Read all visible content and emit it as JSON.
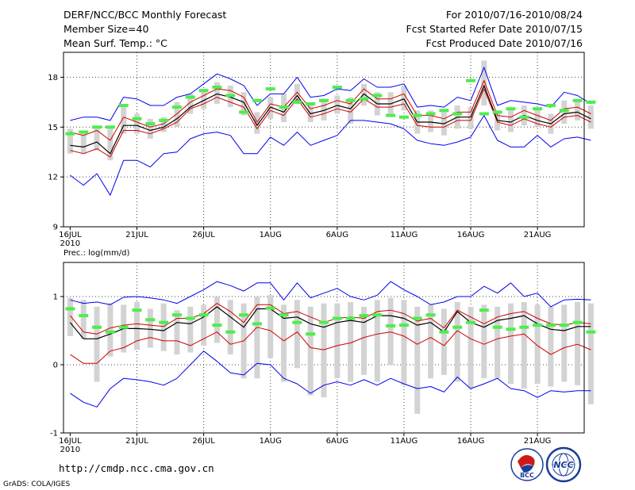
{
  "header": {
    "title": "DERF/NCC/BCC Monthly Forecast",
    "member_size": "Member Size=40",
    "variable": "Mean Surf. Temp.: °C",
    "period": "For 2010/07/16-2010/08/24",
    "start_date": "Fcst Started Refer Date 2010/07/15",
    "produced_date": "Fcst Produced Date 2010/07/16"
  },
  "footer": {
    "url": "http://cmdp.ncc.cma.gov.cn",
    "grads": "GrADS: COLA/IGES",
    "logo_bcc": "BCC",
    "logo_ncc": "NCC"
  },
  "colors": {
    "box": "#d3d3d3",
    "obs": "#4ded4d",
    "mean": "#000000",
    "inner": "#d00000",
    "outer": "#0000ee",
    "grid": "#444444"
  },
  "chart_data": [
    {
      "type": "line",
      "name": "temperature",
      "title": "",
      "ylabel": "°C",
      "ylim": [
        9,
        19.5
      ],
      "yticks": [
        9,
        12,
        15,
        18
      ],
      "ytick_labels": [
        "9",
        "12",
        "15",
        "18"
      ],
      "xlim": [
        0.5,
        39.5
      ],
      "xticks": [
        1,
        6,
        11,
        16,
        21,
        26,
        31,
        36
      ],
      "xtick_labels": [
        "16JUL",
        "21JUL",
        "26JUL",
        "1AUG",
        "6AUG",
        "11AUG",
        "16AUG",
        "21AUG"
      ],
      "xlabel": "2010",
      "series": [
        {
          "name": "ensemble max",
          "role": "outer",
          "values": [
            15.4,
            15.6,
            15.6,
            15.4,
            16.8,
            16.7,
            16.3,
            16.3,
            16.8,
            17.0,
            17.6,
            18.2,
            17.9,
            17.5,
            16.3,
            17.0,
            17.0,
            18.0,
            16.8,
            16.9,
            17.3,
            17.2,
            17.9,
            17.4,
            17.4,
            17.6,
            16.2,
            16.3,
            16.2,
            16.8,
            16.6,
            18.6,
            16.3,
            16.6,
            16.5,
            16.4,
            16.2,
            17.1,
            16.9,
            16.4
          ]
        },
        {
          "name": "upper inner",
          "role": "inner",
          "values": [
            14.7,
            14.5,
            14.8,
            14.2,
            15.6,
            15.3,
            15.0,
            15.2,
            15.8,
            16.5,
            16.9,
            17.3,
            17.2,
            16.8,
            15.3,
            16.4,
            16.2,
            17.1,
            16.1,
            16.3,
            16.6,
            16.4,
            17.3,
            16.7,
            16.7,
            17.0,
            15.7,
            15.7,
            15.5,
            15.9,
            15.9,
            17.8,
            15.7,
            15.6,
            16.0,
            15.7,
            15.4,
            16.1,
            16.2,
            15.8
          ]
        },
        {
          "name": "ensemble mean",
          "role": "mean",
          "values": [
            13.9,
            13.8,
            14.1,
            13.4,
            15.1,
            15.1,
            14.8,
            15.0,
            15.5,
            16.2,
            16.6,
            17.0,
            16.8,
            16.5,
            15.1,
            16.2,
            15.9,
            16.9,
            15.8,
            16.0,
            16.3,
            16.1,
            17.0,
            16.4,
            16.4,
            16.7,
            15.3,
            15.3,
            15.2,
            15.6,
            15.6,
            17.5,
            15.4,
            15.3,
            15.7,
            15.4,
            15.2,
            15.8,
            15.9,
            15.5
          ]
        },
        {
          "name": "lower inner",
          "role": "inner",
          "values": [
            13.6,
            13.4,
            13.7,
            13.2,
            14.8,
            14.8,
            14.6,
            14.9,
            15.3,
            16.1,
            16.4,
            16.8,
            16.5,
            16.2,
            14.9,
            16.0,
            15.7,
            16.7,
            15.6,
            15.8,
            16.1,
            15.9,
            16.7,
            16.2,
            16.2,
            16.4,
            15.1,
            15.0,
            15.0,
            15.4,
            15.4,
            17.3,
            15.3,
            15.1,
            15.5,
            15.2,
            15.0,
            15.6,
            15.7,
            15.3
          ]
        },
        {
          "name": "ensemble min",
          "role": "outer",
          "values": [
            12.1,
            11.5,
            12.2,
            10.9,
            13.0,
            13.0,
            12.6,
            13.4,
            13.5,
            14.3,
            14.6,
            14.7,
            14.5,
            13.4,
            13.4,
            14.4,
            13.9,
            14.7,
            13.9,
            14.2,
            14.5,
            15.4,
            15.4,
            15.3,
            15.2,
            14.9,
            14.2,
            14.0,
            13.9,
            14.1,
            14.4,
            15.7,
            14.2,
            13.8,
            13.8,
            14.5,
            13.8,
            14.3,
            14.4,
            14.2
          ]
        },
        {
          "name": "box top",
          "role": "box",
          "values": [
            14.9,
            14.6,
            14.9,
            14.9,
            16.2,
            15.8,
            15.5,
            15.6,
            16.5,
            17.0,
            17.3,
            17.7,
            17.5,
            17.1,
            15.9,
            16.8,
            17.0,
            17.6,
            16.5,
            16.6,
            16.9,
            16.8,
            17.6,
            17.1,
            17.1,
            17.5,
            16.0,
            16.0,
            15.9,
            16.3,
            16.2,
            19.0,
            16.0,
            16.0,
            16.3,
            16.0,
            15.8,
            16.6,
            16.6,
            16.3
          ]
        },
        {
          "name": "box bottom",
          "role": "box",
          "values": [
            13.4,
            13.4,
            13.6,
            13.0,
            14.6,
            14.6,
            14.3,
            14.7,
            15.0,
            15.8,
            16.1,
            16.4,
            16.2,
            15.7,
            14.6,
            15.5,
            15.3,
            16.4,
            15.3,
            15.4,
            15.8,
            15.2,
            16.3,
            15.7,
            15.7,
            16.0,
            14.6,
            14.7,
            14.5,
            14.9,
            14.9,
            16.3,
            14.8,
            14.7,
            15.1,
            15.0,
            14.6,
            15.2,
            15.4,
            14.9
          ]
        },
        {
          "name": "observed",
          "role": "obs",
          "values": [
            14.6,
            14.7,
            15.0,
            15.0,
            16.3,
            15.5,
            15.2,
            15.4,
            16.2,
            16.8,
            17.2,
            17.4,
            16.9,
            15.9,
            16.6,
            17.3,
            16.2,
            16.5,
            16.4,
            16.6,
            17.4,
            16.6,
            16.7,
            16.9,
            15.7,
            15.6,
            15.7,
            15.8,
            16.0,
            15.8,
            17.8,
            15.8,
            15.9,
            16.1,
            15.6,
            16.1,
            16.3,
            16.0,
            16.6,
            16.5
          ]
        }
      ]
    },
    {
      "type": "line",
      "name": "precipitation",
      "title": "Prec.: log(mm/d)",
      "ylabel": "log(mm/d)",
      "ylim": [
        -1,
        1.5
      ],
      "yticks": [
        -1,
        0,
        1
      ],
      "ytick_labels": [
        "-1",
        "0",
        "1"
      ],
      "xlim": [
        0.5,
        39.5
      ],
      "xticks": [
        1,
        6,
        11,
        16,
        21,
        26,
        31,
        36
      ],
      "xtick_labels": [
        "16JUL",
        "21JUL",
        "26JUL",
        "1AUG",
        "6AUG",
        "11AUG",
        "16AUG",
        "21AUG"
      ],
      "xlabel": "2010",
      "series": [
        {
          "name": "ensemble max",
          "role": "outer",
          "values": [
            0.95,
            0.9,
            0.92,
            0.88,
            0.99,
            1.0,
            0.98,
            0.95,
            0.9,
            1.0,
            1.1,
            1.22,
            1.16,
            1.08,
            1.2,
            1.2,
            0.95,
            1.2,
            0.98,
            1.05,
            1.12,
            1.0,
            0.95,
            1.02,
            1.22,
            1.1,
            1.0,
            0.88,
            0.92,
            1.0,
            1.0,
            1.15,
            1.05,
            1.2,
            1.0,
            1.05,
            0.85,
            0.95,
            0.96,
            0.95
          ]
        },
        {
          "name": "upper inner",
          "role": "inner",
          "values": [
            0.72,
            0.48,
            0.45,
            0.54,
            0.58,
            0.6,
            0.58,
            0.56,
            0.68,
            0.68,
            0.75,
            0.9,
            0.78,
            0.62,
            0.88,
            0.88,
            0.75,
            0.78,
            0.7,
            0.62,
            0.68,
            0.7,
            0.68,
            0.78,
            0.8,
            0.75,
            0.64,
            0.68,
            0.54,
            0.8,
            0.7,
            0.6,
            0.7,
            0.75,
            0.78,
            0.68,
            0.6,
            0.58,
            0.62,
            0.6
          ]
        },
        {
          "name": "ensemble mean",
          "role": "mean",
          "values": [
            0.62,
            0.38,
            0.38,
            0.45,
            0.53,
            0.53,
            0.52,
            0.5,
            0.62,
            0.6,
            0.7,
            0.85,
            0.7,
            0.55,
            0.82,
            0.82,
            0.68,
            0.7,
            0.6,
            0.55,
            0.62,
            0.65,
            0.62,
            0.72,
            0.72,
            0.68,
            0.58,
            0.62,
            0.48,
            0.78,
            0.62,
            0.55,
            0.65,
            0.68,
            0.72,
            0.6,
            0.52,
            0.5,
            0.56,
            0.56
          ]
        },
        {
          "name": "lower inner",
          "role": "inner",
          "values": [
            0.15,
            0.02,
            0.02,
            0.2,
            0.25,
            0.35,
            0.4,
            0.35,
            0.35,
            0.28,
            0.38,
            0.48,
            0.3,
            0.35,
            0.55,
            0.5,
            0.35,
            0.48,
            0.25,
            0.22,
            0.28,
            0.32,
            0.4,
            0.45,
            0.48,
            0.42,
            0.3,
            0.4,
            0.28,
            0.5,
            0.38,
            0.3,
            0.38,
            0.42,
            0.45,
            0.28,
            0.15,
            0.25,
            0.3,
            0.22
          ]
        },
        {
          "name": "ensemble min",
          "role": "outer",
          "values": [
            -0.42,
            -0.55,
            -0.62,
            -0.35,
            -0.2,
            -0.22,
            -0.25,
            -0.3,
            -0.2,
            0.0,
            0.2,
            0.05,
            -0.12,
            -0.15,
            0.02,
            0.0,
            -0.2,
            -0.28,
            -0.42,
            -0.3,
            -0.25,
            -0.3,
            -0.22,
            -0.3,
            -0.2,
            -0.28,
            -0.35,
            -0.32,
            -0.4,
            -0.18,
            -0.35,
            -0.28,
            -0.2,
            -0.35,
            -0.38,
            -0.48,
            -0.38,
            -0.4,
            -0.38,
            -0.38
          ]
        },
        {
          "name": "box top",
          "role": "box",
          "values": [
            0.98,
            0.95,
            0.85,
            0.9,
            0.88,
            0.92,
            0.82,
            0.9,
            0.8,
            0.85,
            0.88,
            1.0,
            0.95,
            0.9,
            1.0,
            1.02,
            0.88,
            0.95,
            0.85,
            0.9,
            0.9,
            0.92,
            0.85,
            0.95,
            0.98,
            0.95,
            0.85,
            0.88,
            0.82,
            0.92,
            0.85,
            0.88,
            0.85,
            0.9,
            0.92,
            0.88,
            0.85,
            0.88,
            0.92,
            0.9
          ]
        },
        {
          "name": "box bottom",
          "role": "box",
          "values": [
            0.42,
            0.38,
            -0.25,
            0.12,
            0.18,
            0.22,
            0.25,
            0.2,
            0.15,
            0.18,
            0.28,
            0.32,
            0.15,
            -0.2,
            -0.2,
            0.1,
            -0.25,
            -0.05,
            -0.45,
            -0.48,
            -0.2,
            -0.25,
            -0.15,
            -0.25,
            0.0,
            -0.3,
            -0.72,
            -0.2,
            -0.15,
            -0.25,
            -0.35,
            -0.2,
            -0.2,
            -0.28,
            -0.35,
            -0.28,
            -0.32,
            -0.25,
            -0.3,
            -0.58
          ]
        },
        {
          "name": "observed",
          "role": "obs",
          "values": [
            0.82,
            0.72,
            0.55,
            0.48,
            0.55,
            0.8,
            0.66,
            0.62,
            0.73,
            0.68,
            0.73,
            0.58,
            0.48,
            0.73,
            0.6,
            0.83,
            0.73,
            0.62,
            0.45,
            0.62,
            0.68,
            0.68,
            0.72,
            0.73,
            0.57,
            0.58,
            0.68,
            0.73,
            0.48,
            0.55,
            0.62,
            0.8,
            0.55,
            0.52,
            0.55,
            0.58,
            0.58,
            0.58,
            0.62,
            0.48
          ]
        }
      ]
    }
  ]
}
